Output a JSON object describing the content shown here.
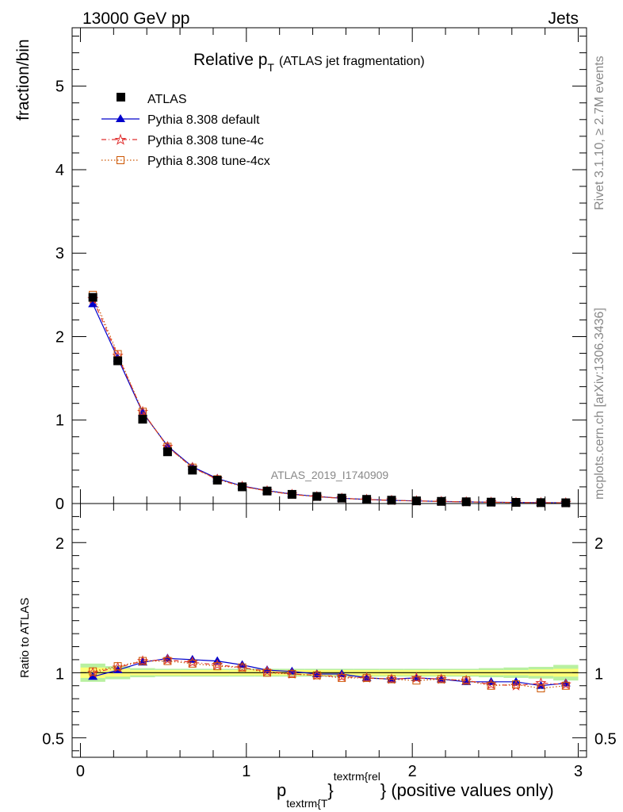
{
  "header": {
    "left": "13000 GeV pp",
    "right": "Jets"
  },
  "side": {
    "rivet": "Rivet 3.1.10, ≥ 2.7M events",
    "mcplots": "mcplots.cern.ch [arXiv:1306.3436]"
  },
  "watermark": "ATLAS_2019_I1740909",
  "title": {
    "main": "Relative p",
    "sub": "T",
    "extra": "(ATLAS jet fragmentation)"
  },
  "ylabel_top": "fraction/bin",
  "ylabel_bottom": "Ratio to ATLAS",
  "xlabel": {
    "p": "p",
    "sub": "textrm{T",
    "mid": "}",
    "sup": "textrm{rel",
    "end": "} (positive values only)"
  },
  "legend": [
    "ATLAS",
    "Pythia 8.308 default",
    "Pythia 8.308 tune-4c",
    "Pythia 8.308 tune-4cx"
  ],
  "colors": {
    "data": "#000000",
    "default": "#0000cc",
    "tune4c": "#e03030",
    "tune4cx": "#cc5500",
    "band_inner": "#ffff77",
    "band_outer": "#b8f0a0"
  },
  "chart_data": [
    {
      "type": "line",
      "panel": "main",
      "xlim": [
        -0.05,
        3.05
      ],
      "ylim": [
        0,
        5.7
      ],
      "ylabel": "fraction/bin",
      "yticks": [
        0,
        1,
        2,
        3,
        4,
        5
      ],
      "x": [
        0.075,
        0.225,
        0.375,
        0.525,
        0.675,
        0.825,
        0.975,
        1.125,
        1.275,
        1.425,
        1.575,
        1.725,
        1.875,
        2.025,
        2.175,
        2.325,
        2.475,
        2.625,
        2.775,
        2.925
      ],
      "series": [
        {
          "name": "ATLAS",
          "values": [
            2.47,
            1.71,
            1.01,
            0.62,
            0.4,
            0.28,
            0.2,
            0.15,
            0.11,
            0.085,
            0.065,
            0.05,
            0.04,
            0.032,
            0.026,
            0.021,
            0.017,
            0.014,
            0.011,
            0.009
          ]
        },
        {
          "name": "Pythia 8.308 default",
          "values": [
            2.39,
            1.74,
            1.09,
            0.69,
            0.44,
            0.3,
            0.21,
            0.155,
            0.113,
            0.085,
            0.064,
            0.048,
            0.038,
            0.031,
            0.025,
            0.0195,
            0.016,
            0.013,
            0.01,
            0.0083
          ]
        },
        {
          "name": "Pythia 8.308 tune-4c",
          "values": [
            2.45,
            1.77,
            1.1,
            0.68,
            0.43,
            0.29,
            0.205,
            0.151,
            0.109,
            0.083,
            0.063,
            0.048,
            0.038,
            0.031,
            0.025,
            0.0198,
            0.0155,
            0.0127,
            0.0101,
            0.0082
          ]
        },
        {
          "name": "Pythia 8.308 tune-4cx",
          "values": [
            2.5,
            1.79,
            1.1,
            0.68,
            0.43,
            0.29,
            0.205,
            0.151,
            0.109,
            0.083,
            0.062,
            0.048,
            0.038,
            0.03,
            0.025,
            0.0198,
            0.0154,
            0.0126,
            0.0097,
            0.0082
          ]
        }
      ]
    },
    {
      "type": "line",
      "panel": "ratio",
      "xlim": [
        -0.05,
        3.05
      ],
      "ylim": [
        0.35,
        2.3
      ],
      "ylabel": "Ratio to ATLAS",
      "yticks": [
        0.5,
        1,
        2
      ],
      "xticks": [
        0,
        1,
        2,
        3
      ],
      "x": [
        0.075,
        0.225,
        0.375,
        0.525,
        0.675,
        0.825,
        0.975,
        1.125,
        1.275,
        1.425,
        1.575,
        1.725,
        1.875,
        2.025,
        2.175,
        2.325,
        2.475,
        2.625,
        2.775,
        2.925
      ],
      "band_inner": [
        0.04,
        0.03,
        0.02,
        0.02,
        0.02,
        0.02,
        0.02,
        0.02,
        0.02,
        0.02,
        0.02,
        0.02,
        0.02,
        0.02,
        0.02,
        0.02,
        0.02,
        0.02,
        0.025,
        0.03
      ],
      "band_outer": [
        0.07,
        0.05,
        0.035,
        0.03,
        0.03,
        0.03,
        0.03,
        0.03,
        0.03,
        0.03,
        0.03,
        0.03,
        0.03,
        0.03,
        0.03,
        0.03,
        0.035,
        0.04,
        0.045,
        0.06
      ],
      "series": [
        {
          "name": "Pythia 8.308 default",
          "values": [
            0.97,
            1.02,
            1.08,
            1.11,
            1.1,
            1.09,
            1.06,
            1.02,
            1.01,
            0.99,
            0.99,
            0.96,
            0.95,
            0.96,
            0.95,
            0.93,
            0.93,
            0.93,
            0.9,
            0.92
          ]
        },
        {
          "name": "Pythia 8.308 tune-4c",
          "values": [
            1.0,
            1.04,
            1.09,
            1.1,
            1.08,
            1.06,
            1.04,
            1.01,
            0.99,
            0.98,
            0.97,
            0.96,
            0.95,
            0.96,
            0.95,
            0.94,
            0.91,
            0.9,
            0.92,
            0.91
          ]
        },
        {
          "name": "Pythia 8.308 tune-4cx",
          "values": [
            1.01,
            1.05,
            1.09,
            1.09,
            1.07,
            1.05,
            1.04,
            1.0,
            0.99,
            0.98,
            0.96,
            0.96,
            0.95,
            0.94,
            0.95,
            0.94,
            0.9,
            0.91,
            0.88,
            0.9
          ]
        }
      ]
    }
  ]
}
